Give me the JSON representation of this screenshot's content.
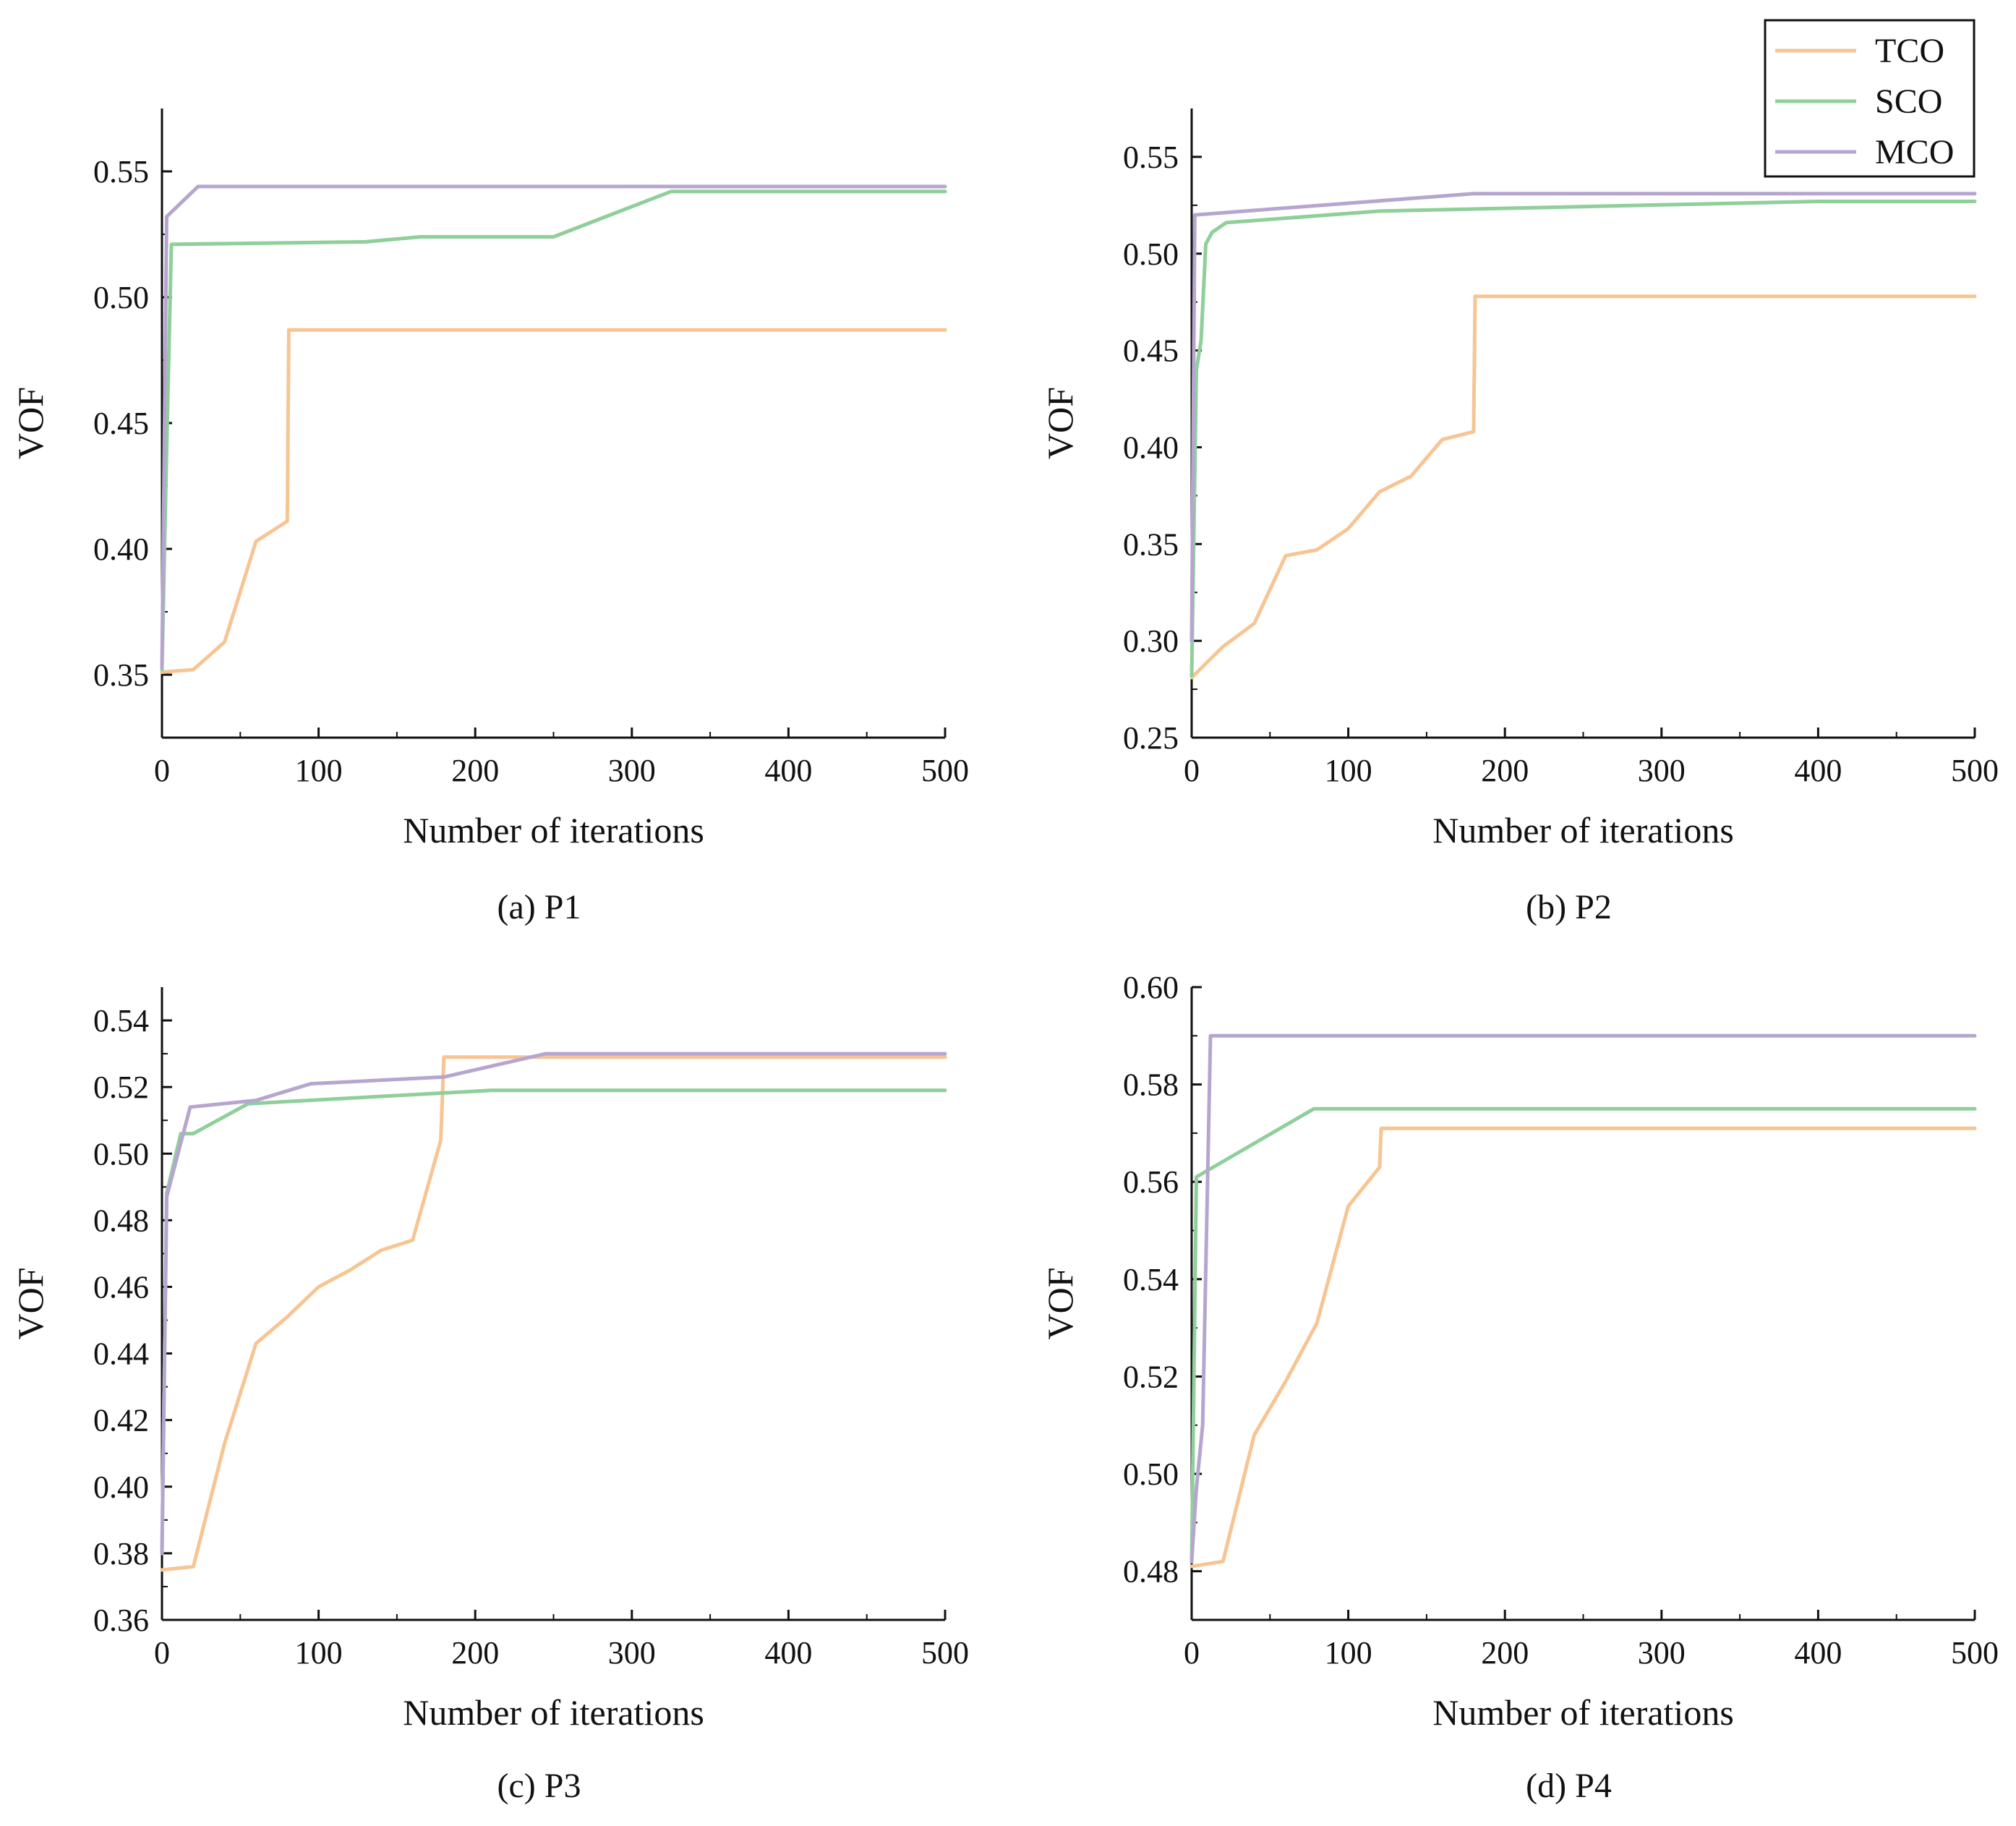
{
  "legend": [
    {
      "name": "TCO",
      "color": "#f7c594"
    },
    {
      "name": "SCO",
      "color": "#8fcf9a"
    },
    {
      "name": "MCO",
      "color": "#b6a6cf"
    }
  ],
  "chart_data": [
    {
      "type": "line",
      "caption": "(a) P1",
      "xlabel": "Number of iterations",
      "ylabel": "VOF",
      "xlim": [
        0,
        500
      ],
      "ylim": [
        0.325,
        0.575
      ],
      "xticks": [
        0,
        100,
        200,
        300,
        400,
        500
      ],
      "yticks": [
        0.35,
        0.4,
        0.45,
        0.5,
        0.55
      ],
      "ytick_labels": [
        "0.35",
        "0.40",
        "0.45",
        "0.50",
        "0.55"
      ],
      "series": [
        {
          "name": "TCO",
          "x": [
            0,
            20,
            40,
            60,
            80,
            81,
            500
          ],
          "y": [
            0.351,
            0.352,
            0.363,
            0.403,
            0.411,
            0.487,
            0.487
          ]
        },
        {
          "name": "SCO",
          "x": [
            0,
            3,
            6,
            130,
            165,
            250,
            325,
            500
          ],
          "y": [
            0.352,
            0.44,
            0.521,
            0.522,
            0.524,
            0.524,
            0.542,
            0.542
          ]
        },
        {
          "name": "MCO",
          "x": [
            0,
            3,
            23,
            500
          ],
          "y": [
            0.353,
            0.532,
            0.544,
            0.544
          ]
        }
      ]
    },
    {
      "type": "line",
      "caption": "(b) P2",
      "xlabel": "Number of iterations",
      "ylabel": "VOF",
      "xlim": [
        0,
        500
      ],
      "ylim": [
        0.25,
        0.575
      ],
      "xticks": [
        0,
        100,
        200,
        300,
        400,
        500
      ],
      "yticks": [
        0.25,
        0.3,
        0.35,
        0.4,
        0.45,
        0.5,
        0.55
      ],
      "ytick_labels": [
        "0.25",
        "0.30",
        "0.35",
        "0.40",
        "0.45",
        "0.50",
        "0.55"
      ],
      "series": [
        {
          "name": "TCO",
          "x": [
            0,
            20,
            40,
            60,
            80,
            100,
            120,
            140,
            160,
            180,
            181,
            500
          ],
          "y": [
            0.281,
            0.297,
            0.309,
            0.344,
            0.347,
            0.358,
            0.377,
            0.385,
            0.404,
            0.408,
            0.478,
            0.478
          ]
        },
        {
          "name": "SCO",
          "x": [
            0,
            3,
            6,
            9,
            13,
            22,
            120,
            400,
            500
          ],
          "y": [
            0.282,
            0.44,
            0.455,
            0.505,
            0.511,
            0.516,
            0.522,
            0.527,
            0.527
          ]
        },
        {
          "name": "MCO",
          "x": [
            0,
            2,
            180,
            500
          ],
          "y": [
            0.3,
            0.52,
            0.531,
            0.531
          ]
        }
      ]
    },
    {
      "type": "line",
      "caption": "(c) P3",
      "xlabel": "Number of iterations",
      "ylabel": "VOF",
      "xlim": [
        0,
        500
      ],
      "ylim": [
        0.36,
        0.55
      ],
      "xticks": [
        0,
        100,
        200,
        300,
        400,
        500
      ],
      "yticks": [
        0.36,
        0.38,
        0.4,
        0.42,
        0.44,
        0.46,
        0.48,
        0.5,
        0.52,
        0.54
      ],
      "ytick_labels": [
        "0.36",
        "0.38",
        "0.40",
        "0.42",
        "0.44",
        "0.46",
        "0.48",
        "0.50",
        "0.52",
        "0.54"
      ],
      "series": [
        {
          "name": "TCO",
          "x": [
            0,
            20,
            40,
            60,
            80,
            100,
            120,
            140,
            160,
            178,
            180,
            500
          ],
          "y": [
            0.375,
            0.376,
            0.413,
            0.443,
            0.451,
            0.46,
            0.465,
            0.471,
            0.474,
            0.504,
            0.529,
            0.529
          ]
        },
        {
          "name": "SCO",
          "x": [
            0,
            3,
            12,
            20,
            55,
            210,
            500
          ],
          "y": [
            0.38,
            0.488,
            0.506,
            0.506,
            0.515,
            0.519,
            0.519
          ]
        },
        {
          "name": "MCO",
          "x": [
            0,
            3,
            18,
            60,
            95,
            180,
            245,
            500
          ],
          "y": [
            0.38,
            0.487,
            0.514,
            0.516,
            0.521,
            0.523,
            0.53,
            0.53
          ]
        }
      ]
    },
    {
      "type": "line",
      "caption": "(d) P4",
      "xlabel": "Number of iterations",
      "ylabel": "VOF",
      "xlim": [
        0,
        500
      ],
      "ylim": [
        0.47,
        0.6
      ],
      "xticks": [
        0,
        100,
        200,
        300,
        400,
        500
      ],
      "yticks": [
        0.48,
        0.5,
        0.52,
        0.54,
        0.56,
        0.58,
        0.6
      ],
      "ytick_labels": [
        "0.48",
        "0.50",
        "0.52",
        "0.54",
        "0.56",
        "0.58",
        "0.60"
      ],
      "series": [
        {
          "name": "TCO",
          "x": [
            0,
            20,
            40,
            60,
            80,
            100,
            120,
            121,
            500
          ],
          "y": [
            0.481,
            0.482,
            0.508,
            0.519,
            0.531,
            0.555,
            0.563,
            0.571,
            0.571
          ]
        },
        {
          "name": "SCO",
          "x": [
            0,
            3,
            78,
            500
          ],
          "y": [
            0.482,
            0.561,
            0.575,
            0.575
          ]
        },
        {
          "name": "MCO",
          "x": [
            0,
            3,
            7,
            12,
            500
          ],
          "y": [
            0.482,
            0.497,
            0.51,
            0.59,
            0.59
          ]
        }
      ]
    }
  ]
}
